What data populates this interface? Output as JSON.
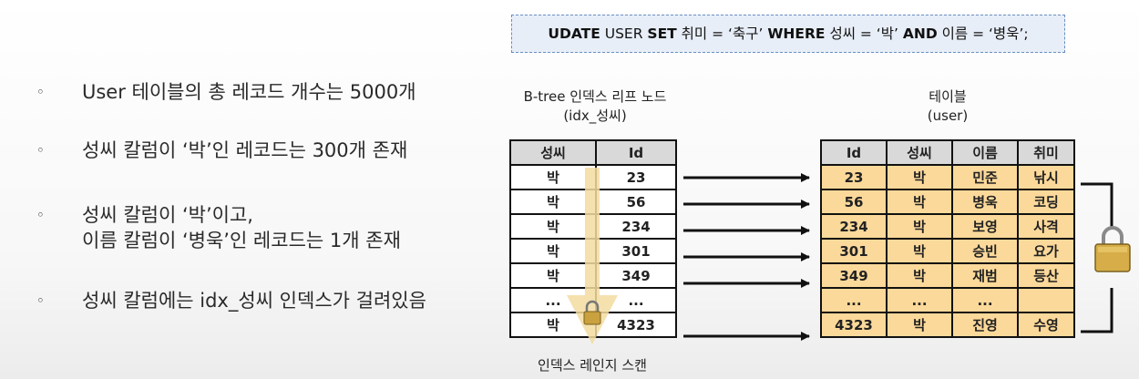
{
  "bullets": [
    {
      "marker": "◦",
      "lines": [
        "User 테이블의 총 레코드 개수는 5000개"
      ]
    },
    {
      "marker": "◦",
      "lines": [
        "성씨 칼럼이 ‘박’인 레코드는 300개 존재"
      ]
    },
    {
      "marker": "◦",
      "lines": [
        "성씨 칼럼이 ‘박’이고,",
        "이름 칼럼이 ‘병욱’인 레코드는 1개 존재"
      ]
    },
    {
      "marker": "◦",
      "lines": [
        "성씨 칼럼에는 idx_성씨 인덱스가 걸려있음"
      ]
    }
  ],
  "query": {
    "kw_update": "UDATE",
    "t1": " USER ",
    "kw_set": "SET",
    "t2": " 취미 = ‘축구’ ",
    "kw_where": "WHERE",
    "t3": " 성씨 = ‘박’ ",
    "kw_and": "AND",
    "t4": " 이름 = ‘병욱’;"
  },
  "index": {
    "title_line1": "B-tree 인덱스 리프 노드",
    "title_line2": "(idx_성씨)",
    "headers": [
      "성씨",
      "Id"
    ],
    "rows": [
      [
        "박",
        "23"
      ],
      [
        "박",
        "56"
      ],
      [
        "박",
        "234"
      ],
      [
        "박",
        "301"
      ],
      [
        "박",
        "349"
      ],
      [
        "...",
        "..."
      ],
      [
        "박",
        "4323"
      ]
    ],
    "scan_label": "인덱스 레인지 스캔"
  },
  "table": {
    "title_line1": "테이블",
    "title_line2": "(user)",
    "headers": [
      "Id",
      "성씨",
      "이름",
      "취미"
    ],
    "rows": [
      [
        "23",
        "박",
        "민준",
        "낚시"
      ],
      [
        "56",
        "박",
        "병욱",
        "코딩"
      ],
      [
        "234",
        "박",
        "보영",
        "사격"
      ],
      [
        "301",
        "박",
        "승빈",
        "요가"
      ],
      [
        "349",
        "박",
        "재범",
        "등산"
      ],
      [
        "...",
        "...",
        "...",
        ""
      ],
      [
        "4323",
        "박",
        "진영",
        "수영"
      ]
    ]
  },
  "icons": [
    "lock-icon",
    "arrow-down-icon",
    "arrow-right-icon"
  ],
  "colors": {
    "table_fill": "#fbd99a",
    "scan_arrow": "#f3dca0",
    "query_bg": "#e8eef8",
    "query_border": "#6a8fc0",
    "header_fill": "#d9d9d9"
  }
}
